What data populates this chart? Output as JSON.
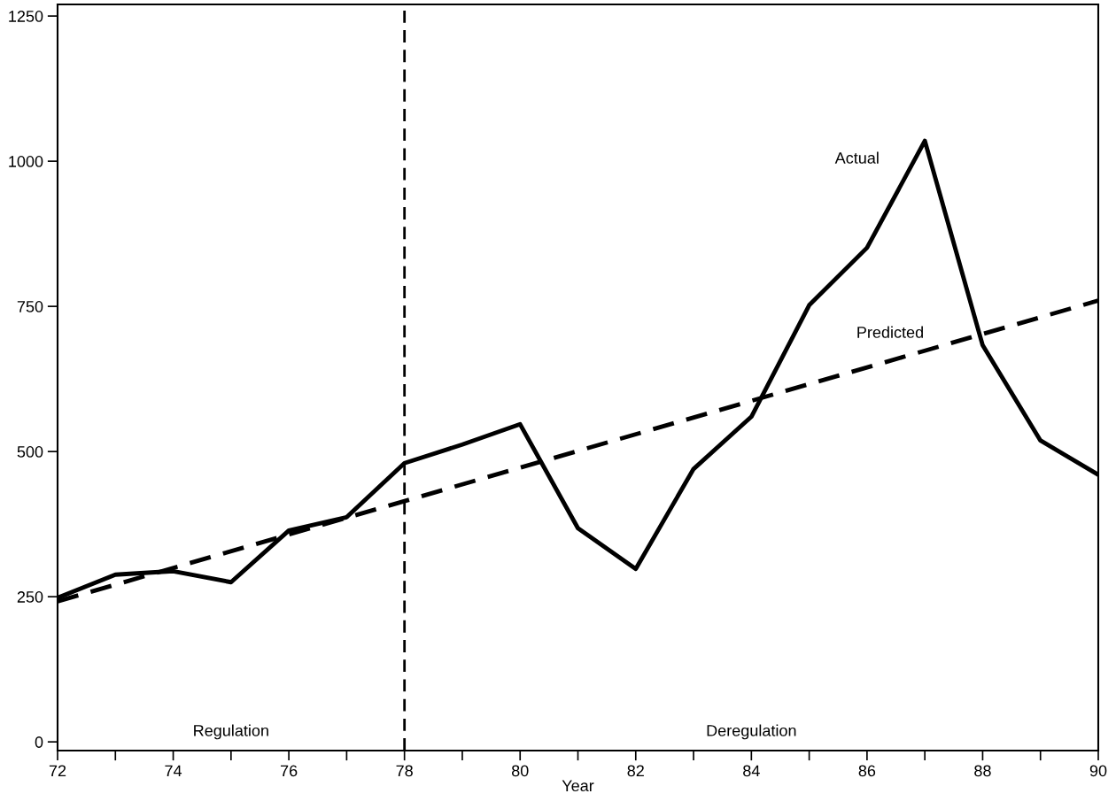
{
  "chart_data": {
    "type": "line",
    "xlabel": "Year",
    "x": [
      72,
      73,
      74,
      75,
      76,
      77,
      78,
      79,
      80,
      81,
      82,
      83,
      84,
      85,
      86,
      87,
      88,
      89,
      90
    ],
    "series": [
      {
        "name": "Actual",
        "color": "#000000",
        "line_style": "solid",
        "values": [
          248,
          288,
          294,
          275,
          364,
          387,
          480,
          512,
          547,
          368,
          298,
          470,
          560,
          752,
          851,
          1035,
          683,
          519,
          460
        ]
      },
      {
        "name": "Predicted",
        "color": "#000000",
        "line_style": "dashed",
        "x": [
          72,
          90
        ],
        "values": [
          242,
          760
        ]
      }
    ],
    "xlim": [
      72,
      90
    ],
    "ylim": [
      -15,
      1270
    ],
    "xticks": [
      72,
      {
        "value": 73,
        "label": null
      },
      74,
      {
        "value": 75,
        "label": null
      },
      76,
      {
        "value": 77,
        "label": null
      },
      78,
      {
        "value": 79,
        "label": null
      },
      80,
      {
        "value": 81,
        "label": null
      },
      82,
      {
        "value": 83,
        "label": null
      },
      84,
      {
        "value": 85,
        "label": null
      },
      86,
      {
        "value": 87,
        "label": null
      },
      88,
      {
        "value": 89,
        "label": null
      },
      90
    ],
    "yticks": [
      0,
      250,
      500,
      750,
      1000,
      1250
    ],
    "ref_lines": [
      {
        "axis": "x",
        "value": 78,
        "label": null,
        "color": "#000000",
        "line_style": "dashed"
      }
    ],
    "annotations": [
      "Regulation",
      "Deregulation"
    ],
    "grid": false,
    "legend": false
  }
}
